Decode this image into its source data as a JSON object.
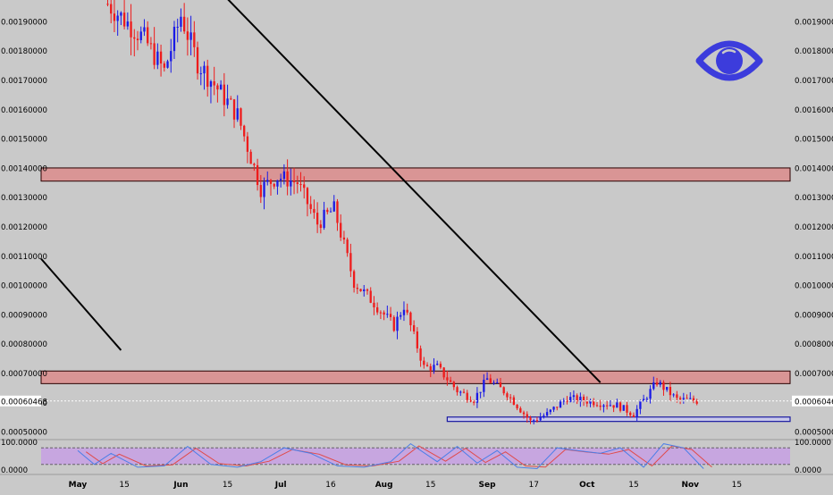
{
  "chart_data": {
    "type": "candlestick",
    "current_price": 0.00060468,
    "current_price_label": "0.00060468",
    "price_tick_labels": [
      "0.00050000",
      "0.00060000",
      "0.00070000",
      "0.00080000",
      "0.00090000",
      "0.00100000",
      "0.00110000",
      "0.00120000",
      "0.00130000",
      "0.00140000",
      "0.00150000",
      "0.00160000",
      "0.00170000",
      "0.00180000",
      "0.00190000"
    ],
    "price_ticks": [
      0.0005,
      0.0006,
      0.0007,
      0.0008,
      0.0009,
      0.001,
      0.0011,
      0.0012,
      0.0013,
      0.0014,
      0.0015,
      0.0016,
      0.0017,
      0.0018,
      0.0019
    ],
    "ylim": [
      0.000473,
      0.001973
    ],
    "x_axis_labels": [
      "May",
      "15",
      "Jun",
      "15",
      "Jul",
      "16",
      "Aug",
      "15",
      "Sep",
      "17",
      "Oct",
      "15",
      "Nov",
      "15"
    ],
    "x_axis_days": [
      0,
      14,
      31,
      45,
      61,
      76,
      92,
      106,
      123,
      137,
      153,
      167,
      184,
      198
    ],
    "xlim_days": [
      -11,
      214
    ],
    "colors": {
      "up": "#1a1ae6",
      "down": "#ee1c1c",
      "zone_fill": "#d99595",
      "zone_edge": "#2a0000",
      "support": "#1a1aa0",
      "stoch_band": "#c7a6e0",
      "stoch_k": "#4a7ee8",
      "stoch_d": "#e04a4a",
      "eye": "#3c3cdc"
    },
    "resistance_zones": [
      {
        "low": 0.001355,
        "high": 0.0014
      },
      {
        "low": 0.000664,
        "high": 0.000707
      }
    ],
    "support_zone": {
      "low": 0.000535,
      "high": 0.00055
    },
    "support_zone_days": [
      111,
      214
    ],
    "trendlines": [
      {
        "from": {
          "day": 43,
          "price": 0.002
        },
        "to": {
          "day": 157,
          "price": 0.000668
        }
      },
      {
        "from": {
          "day": -11,
          "price": 0.00109
        },
        "to": {
          "day": 13,
          "price": 0.000778
        }
      }
    ],
    "price_path": [
      {
        "day": 9,
        "price": 0.00196
      },
      {
        "day": 20,
        "price": 0.00184
      },
      {
        "day": 26,
        "price": 0.00173
      },
      {
        "day": 31,
        "price": 0.00192
      },
      {
        "day": 36,
        "price": 0.00176
      },
      {
        "day": 42,
        "price": 0.00167
      },
      {
        "day": 48,
        "price": 0.00158
      },
      {
        "day": 55,
        "price": 0.00133
      },
      {
        "day": 60,
        "price": 0.00137
      },
      {
        "day": 66,
        "price": 0.00135
      },
      {
        "day": 72,
        "price": 0.00121
      },
      {
        "day": 77,
        "price": 0.00126
      },
      {
        "day": 83,
        "price": 0.00101
      },
      {
        "day": 89,
        "price": 0.00094
      },
      {
        "day": 95,
        "price": 0.00086
      },
      {
        "day": 98,
        "price": 0.00093
      },
      {
        "day": 104,
        "price": 0.00072
      },
      {
        "day": 108,
        "price": 0.00072
      },
      {
        "day": 114,
        "price": 0.00064
      },
      {
        "day": 119,
        "price": 0.00061
      },
      {
        "day": 123,
        "price": 0.00068
      },
      {
        "day": 129,
        "price": 0.00063
      },
      {
        "day": 136,
        "price": 0.000535
      },
      {
        "day": 141,
        "price": 0.00056
      },
      {
        "day": 147,
        "price": 0.000615
      },
      {
        "day": 162,
        "price": 0.00059
      },
      {
        "day": 167,
        "price": 0.00056
      },
      {
        "day": 174,
        "price": 0.00067
      },
      {
        "day": 180,
        "price": 0.00061
      },
      {
        "day": 186,
        "price": 0.000605
      }
    ],
    "stochastic": {
      "tick_labels": [
        "100.0000",
        "0.0000"
      ],
      "upper_level": 80,
      "lower_level": 20,
      "k": [
        {
          "day": 0,
          "value": 70
        },
        {
          "day": 5,
          "value": 20
        },
        {
          "day": 10,
          "value": 60
        },
        {
          "day": 18,
          "value": 10
        },
        {
          "day": 26,
          "value": 15
        },
        {
          "day": 33,
          "value": 85
        },
        {
          "day": 40,
          "value": 20
        },
        {
          "day": 48,
          "value": 10
        },
        {
          "day": 55,
          "value": 30
        },
        {
          "day": 62,
          "value": 80
        },
        {
          "day": 70,
          "value": 60
        },
        {
          "day": 78,
          "value": 15
        },
        {
          "day": 86,
          "value": 10
        },
        {
          "day": 94,
          "value": 30
        },
        {
          "day": 100,
          "value": 95
        },
        {
          "day": 108,
          "value": 30
        },
        {
          "day": 114,
          "value": 85
        },
        {
          "day": 120,
          "value": 25
        },
        {
          "day": 126,
          "value": 70
        },
        {
          "day": 132,
          "value": 10
        },
        {
          "day": 138,
          "value": 5
        },
        {
          "day": 144,
          "value": 80
        },
        {
          "day": 150,
          "value": 70
        },
        {
          "day": 157,
          "value": 60
        },
        {
          "day": 163,
          "value": 80
        },
        {
          "day": 170,
          "value": 10
        },
        {
          "day": 176,
          "value": 95
        },
        {
          "day": 182,
          "value": 80
        },
        {
          "day": 188,
          "value": 5
        }
      ]
    }
  }
}
